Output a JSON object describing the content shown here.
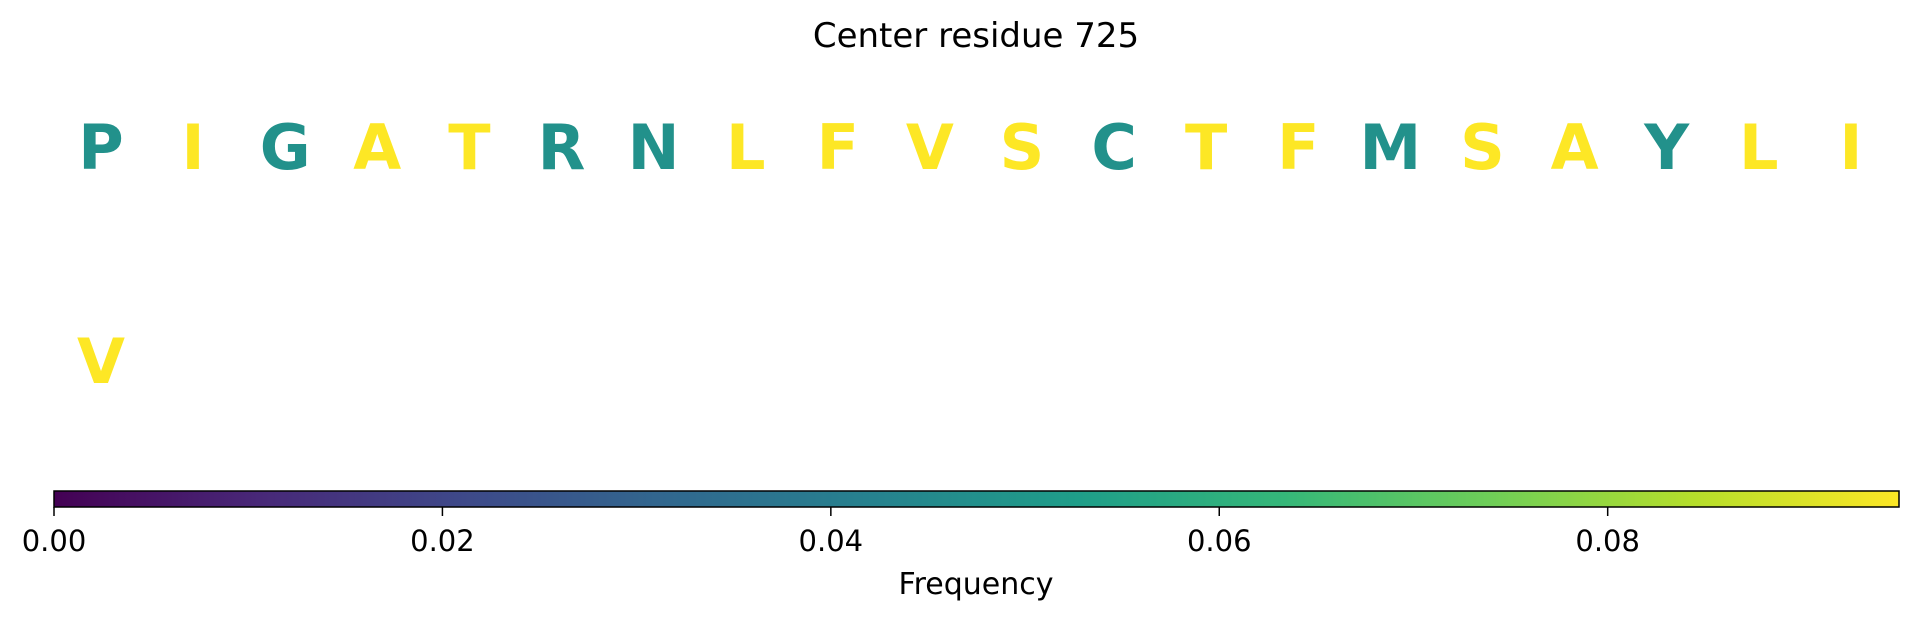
{
  "chart_data": {
    "type": "heatmap",
    "title": "Center residue 725",
    "rows": [
      [
        {
          "residue": "P",
          "frequency": 0.048
        },
        {
          "residue": "I",
          "frequency": 0.095
        },
        {
          "residue": "G",
          "frequency": 0.048
        },
        {
          "residue": "A",
          "frequency": 0.095
        },
        {
          "residue": "T",
          "frequency": 0.095
        },
        {
          "residue": "R",
          "frequency": 0.048
        },
        {
          "residue": "N",
          "frequency": 0.048
        },
        {
          "residue": "L",
          "frequency": 0.095
        },
        {
          "residue": "F",
          "frequency": 0.095
        },
        {
          "residue": "V",
          "frequency": 0.095
        },
        {
          "residue": "S",
          "frequency": 0.095
        },
        {
          "residue": "C",
          "frequency": 0.048
        },
        {
          "residue": "T",
          "frequency": 0.095
        },
        {
          "residue": "F",
          "frequency": 0.095
        },
        {
          "residue": "M",
          "frequency": 0.048
        },
        {
          "residue": "S",
          "frequency": 0.095
        },
        {
          "residue": "A",
          "frequency": 0.095
        },
        {
          "residue": "Y",
          "frequency": 0.048
        },
        {
          "residue": "L",
          "frequency": 0.095
        },
        {
          "residue": "I",
          "frequency": 0.095
        }
      ],
      [
        {
          "residue": "V",
          "frequency": 0.095
        }
      ]
    ],
    "colorbar": {
      "label": "Frequency",
      "range": [
        0,
        0.095
      ],
      "ticks": [
        0.0,
        0.02,
        0.04,
        0.06,
        0.08
      ],
      "tick_labels": [
        "0.00",
        "0.02",
        "0.04",
        "0.06",
        "0.08"
      ],
      "colormap": "viridis"
    },
    "colors": {
      "viridis_stops": [
        "#440154",
        "#482878",
        "#3e4989",
        "#31688e",
        "#26828e",
        "#1f9e89",
        "#35b779",
        "#6ece58",
        "#b5de2b",
        "#fde725"
      ]
    }
  }
}
